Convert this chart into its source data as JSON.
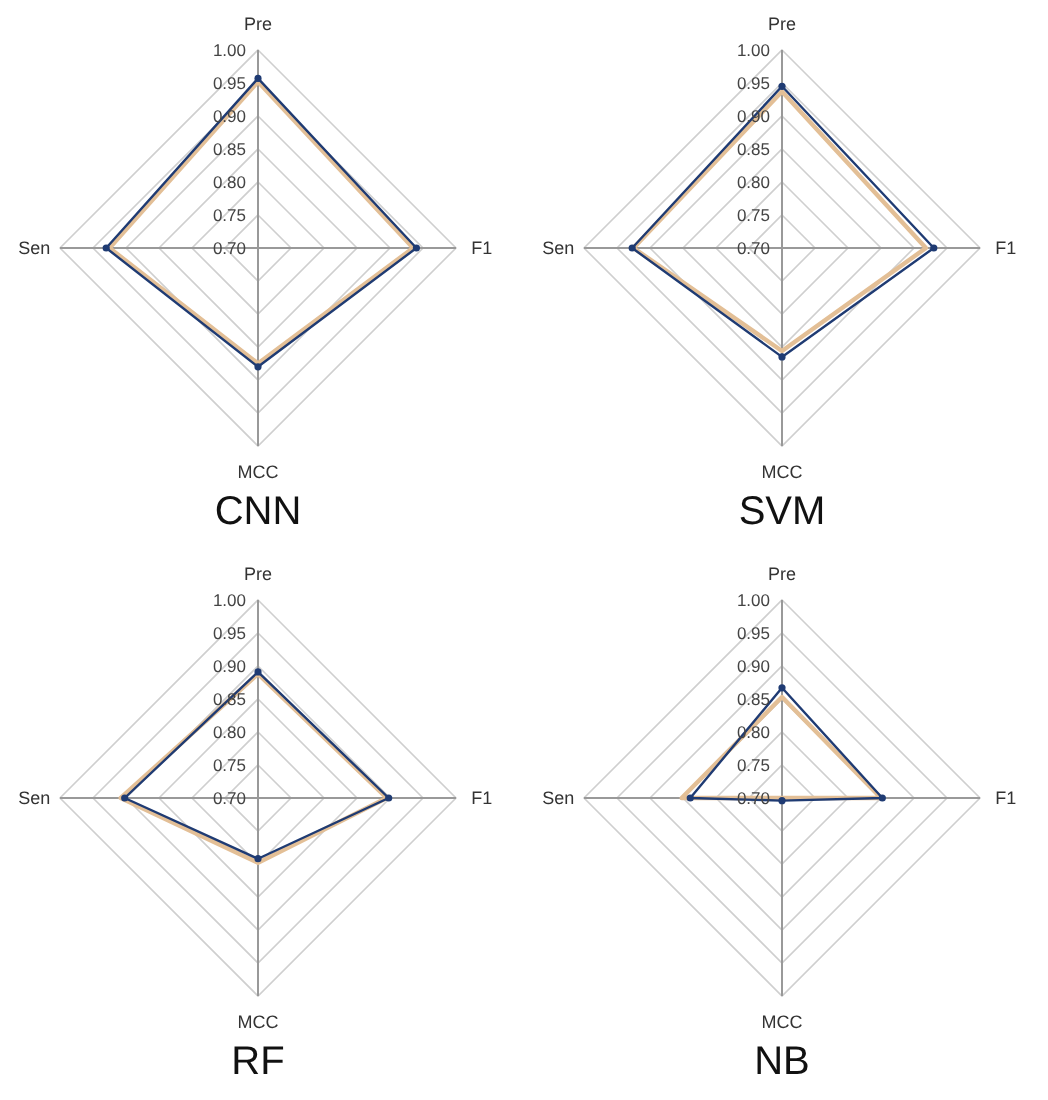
{
  "chart_data": [
    {
      "type": "radar",
      "title": "CNN",
      "categories": [
        "Pre",
        "F1",
        "MCC",
        "Sen"
      ],
      "ylim": [
        0.7,
        1.0
      ],
      "yticks": [
        {
          "value": 0.7,
          "label": "0.70"
        },
        0.75,
        {
          "value": 0.8,
          "label": "0.80"
        },
        0.85,
        {
          "value": 0.9,
          "label": "0.90"
        },
        0.95,
        {
          "value": 1.0,
          "label": "1.00"
        }
      ],
      "grid": true,
      "series": [
        {
          "color": "#e3bf96",
          "marker": "none",
          "values": [
            0.952,
            0.935,
            0.875,
            0.925
          ]
        },
        {
          "color": "#1f3b73",
          "marker": "circle",
          "values": [
            0.957,
            0.94,
            0.88,
            0.93
          ]
        }
      ]
    },
    {
      "type": "radar",
      "title": "SVM",
      "categories": [
        "Pre",
        "F1",
        "MCC",
        "Sen"
      ],
      "ylim": [
        0.7,
        1.0
      ],
      "yticks": [
        {
          "value": 0.7,
          "label": "0.70"
        },
        0.75,
        {
          "value": 0.8,
          "label": "0.80"
        },
        0.85,
        {
          "value": 0.9,
          "label": "0.90"
        },
        0.95,
        {
          "value": 1.0,
          "label": "1.00"
        }
      ],
      "grid": true,
      "series": [
        {
          "color": "#e3bf96",
          "marker": "none",
          "values": [
            0.937,
            0.918,
            0.856,
            0.925
          ]
        },
        {
          "color": "#1f3b73",
          "marker": "circle",
          "values": [
            0.945,
            0.93,
            0.865,
            0.927
          ]
        }
      ]
    },
    {
      "type": "radar",
      "title": "RF",
      "categories": [
        "Pre",
        "F1",
        "MCC",
        "Sen"
      ],
      "ylim": [
        0.7,
        1.0
      ],
      "yticks": [
        {
          "value": 0.7,
          "label": "0.70"
        },
        0.75,
        {
          "value": 0.8,
          "label": "0.80"
        },
        0.85,
        {
          "value": 0.9,
          "label": "0.90"
        },
        0.95,
        {
          "value": 1.0,
          "label": "1.00"
        }
      ],
      "grid": true,
      "series": [
        {
          "color": "#e3bf96",
          "marker": "none",
          "values": [
            0.888,
            0.895,
            0.798,
            0.908
          ]
        },
        {
          "color": "#1f3b73",
          "marker": "circle",
          "values": [
            0.891,
            0.898,
            0.792,
            0.902
          ]
        }
      ]
    },
    {
      "type": "radar",
      "title": "NB",
      "categories": [
        "Pre",
        "F1",
        "MCC",
        "Sen"
      ],
      "ylim": [
        0.7,
        1.0
      ],
      "yticks": [
        {
          "value": 0.7,
          "label": "0.70"
        },
        0.75,
        {
          "value": 0.8,
          "label": "0.80"
        },
        0.85,
        {
          "value": 0.9,
          "label": "0.90"
        },
        0.95,
        {
          "value": 1.0,
          "label": "1.00"
        }
      ],
      "grid": true,
      "series": [
        {
          "color": "#e3bf96",
          "marker": "none",
          "values": [
            0.853,
            0.85,
            0.7,
            0.852
          ]
        },
        {
          "color": "#1f3b73",
          "marker": "circle",
          "values": [
            0.867,
            0.852,
            0.704,
            0.839
          ]
        }
      ]
    }
  ]
}
